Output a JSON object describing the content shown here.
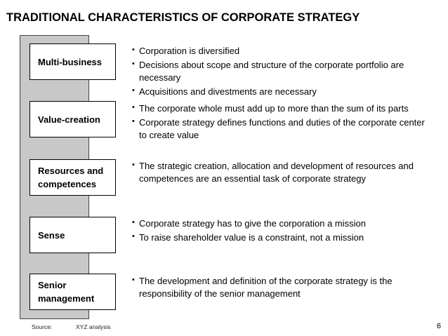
{
  "title": "TRADITIONAL CHARACTERISTICS OF CORPORATE STRATEGY",
  "rows": [
    {
      "label": "Multi-business",
      "bullets": [
        "Corporation is diversified",
        "Decisions about scope and structure of the corporate portfolio are necessary",
        "Acquisitions and divestments are necessary"
      ]
    },
    {
      "label": "Value-creation",
      "bullets": [
        "The corporate whole must add up to more than the sum of its parts",
        "Corporate strategy defines functions and duties of the corporate center to create value"
      ]
    },
    {
      "label": "Resources and competences",
      "bullets": [
        "The strategic creation, allocation and development of resources and competences are an essential task of corporate strategy"
      ]
    },
    {
      "label": "Sense",
      "bullets": [
        "Corporate strategy has to give the corporation a mission",
        "To raise shareholder value is a constraint, not a mission"
      ]
    },
    {
      "label": "Senior management",
      "bullets": [
        "The development and definition of the corporate strategy is the responsibility of the senior management"
      ]
    }
  ],
  "footer": {
    "source_label": "Source:",
    "source_value": "XYZ analysis",
    "page_number": "6"
  }
}
